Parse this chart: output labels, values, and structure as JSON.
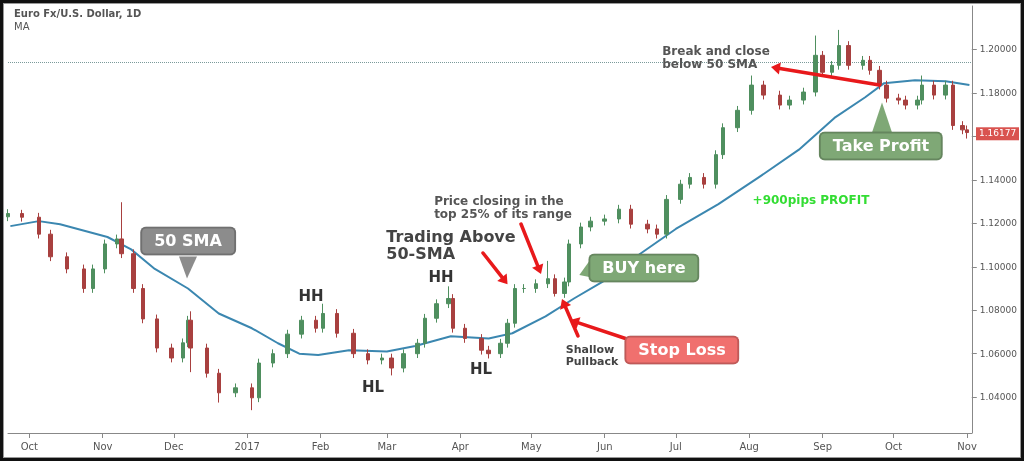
{
  "chart_data": {
    "type": "candlestick",
    "title": "Euro Fx/U.S. Dollar, 1D",
    "subtitle": "MA",
    "xlim": [
      "2016-09-22",
      "2017-11-03"
    ],
    "xticks": [
      {
        "value": "2016-10-01",
        "label": "Oct"
      },
      {
        "value": "2016-11-01",
        "label": "Nov"
      },
      {
        "value": "2016-12-01",
        "label": "Dec"
      },
      {
        "value": "2017-01-01",
        "label": "2017"
      },
      {
        "value": "2017-02-01",
        "label": "Feb"
      },
      {
        "value": "2017-03-01",
        "label": "Mar"
      },
      {
        "value": "2017-04-01",
        "label": "Apr"
      },
      {
        "value": "2017-05-01",
        "label": "May"
      },
      {
        "value": "2017-06-01",
        "label": "Jun"
      },
      {
        "value": "2017-07-01",
        "label": "Jul"
      },
      {
        "value": "2017-08-01",
        "label": "Aug"
      },
      {
        "value": "2017-09-01",
        "label": "Sep"
      },
      {
        "value": "2017-10-01",
        "label": "Oct"
      },
      {
        "value": "2017-11-01",
        "label": "Nov"
      }
    ],
    "ylim": [
      1.0235,
      1.22
    ],
    "yticks": [
      {
        "value": 1.04,
        "label": "1.04000"
      },
      {
        "value": 1.06,
        "label": "1.06000"
      },
      {
        "value": 1.08,
        "label": "1.08000"
      },
      {
        "value": 1.1,
        "label": "1.10000"
      },
      {
        "value": 1.12,
        "label": "1.12000"
      },
      {
        "value": 1.14,
        "label": "1.14000"
      },
      {
        "value": 1.16,
        "label": null
      },
      {
        "value": 1.18,
        "label": "1.18000"
      },
      {
        "value": 1.2,
        "label": "1.20000"
      }
    ],
    "grid": false,
    "series": [
      {
        "type": "candlestick",
        "x": [
          "2016-09-22",
          "2016-09-28",
          "2016-10-05",
          "2016-10-10",
          "2016-10-17",
          "2016-10-24",
          "2016-10-28",
          "2016-11-02",
          "2016-11-07",
          "2016-11-09",
          "2016-11-14",
          "2016-11-18",
          "2016-11-24",
          "2016-11-30",
          "2016-12-05",
          "2016-12-07",
          "2016-12-08",
          "2016-12-15",
          "2016-12-20",
          "2016-12-27",
          "2017-01-03",
          "2017-01-06",
          "2017-01-12",
          "2017-01-18",
          "2017-01-24",
          "2017-01-30",
          "2017-02-02",
          "2017-02-08",
          "2017-02-15",
          "2017-02-21",
          "2017-02-27",
          "2017-03-03",
          "2017-03-08",
          "2017-03-14",
          "2017-03-17",
          "2017-03-22",
          "2017-03-27",
          "2017-03-29",
          "2017-04-03",
          "2017-04-10",
          "2017-04-13",
          "2017-04-18",
          "2017-04-21",
          "2017-04-24",
          "2017-04-28",
          "2017-05-03",
          "2017-05-08",
          "2017-05-11",
          "2017-05-15",
          "2017-05-17",
          "2017-05-22",
          "2017-05-26",
          "2017-06-01",
          "2017-06-07",
          "2017-06-12",
          "2017-06-19",
          "2017-06-23",
          "2017-06-27",
          "2017-07-03",
          "2017-07-07",
          "2017-07-13",
          "2017-07-18",
          "2017-07-21",
          "2017-07-27",
          "2017-08-02",
          "2017-08-07",
          "2017-08-14",
          "2017-08-18",
          "2017-08-24",
          "2017-08-29",
          "2017-09-01",
          "2017-09-05",
          "2017-09-08",
          "2017-09-12",
          "2017-09-18",
          "2017-09-21",
          "2017-09-25",
          "2017-09-28",
          "2017-10-03",
          "2017-10-06",
          "2017-10-11",
          "2017-10-13",
          "2017-10-18",
          "2017-10-23",
          "2017-10-26",
          "2017-10-30",
          "2017-11-01"
        ],
        "ohlc": [
          [
            1.123,
            1.1265,
            1.121,
            1.1245
          ],
          [
            1.1245,
            1.1262,
            1.1208,
            1.1228
          ],
          [
            1.1228,
            1.1248,
            1.113,
            1.115
          ],
          [
            1.115,
            1.117,
            1.1026,
            1.1046
          ],
          [
            1.1046,
            1.1066,
            1.097,
            1.099
          ],
          [
            1.099,
            1.101,
            1.088,
            1.09
          ],
          [
            1.09,
            1.101,
            1.088,
            1.099
          ],
          [
            1.099,
            1.1125,
            1.097,
            1.1105
          ],
          [
            1.1105,
            1.1148,
            1.1085,
            1.1128
          ],
          [
            1.1128,
            1.1297,
            1.104,
            1.106
          ],
          [
            1.106,
            1.108,
            1.088,
            1.09
          ],
          [
            1.09,
            1.092,
            1.074,
            1.076
          ],
          [
            1.076,
            1.078,
            1.0606,
            1.0626
          ],
          [
            1.0626,
            1.0646,
            1.056,
            1.058
          ],
          [
            1.058,
            1.067,
            1.056,
            1.065
          ],
          [
            1.065,
            1.0774,
            1.063,
            1.0754
          ],
          [
            1.0754,
            1.0795,
            1.0515,
            1.0626
          ],
          [
            1.0626,
            1.0646,
            1.049,
            1.051
          ],
          [
            1.051,
            1.053,
            1.0375,
            1.042
          ],
          [
            1.042,
            1.0463,
            1.04,
            1.0443
          ],
          [
            1.0443,
            1.0463,
            1.034,
            1.0397
          ],
          [
            1.0397,
            1.0577,
            1.0377,
            1.0557
          ],
          [
            1.0557,
            1.062,
            1.0537,
            1.06
          ],
          [
            1.06,
            1.071,
            1.058,
            1.069
          ],
          [
            1.069,
            1.0774,
            1.067,
            1.0754
          ],
          [
            1.0754,
            1.0774,
            1.0697,
            1.0717
          ],
          [
            1.0717,
            1.083,
            1.0697,
            1.0785
          ],
          [
            1.0785,
            1.0805,
            1.0674,
            1.0694
          ],
          [
            1.0694,
            1.0714,
            1.058,
            1.06
          ],
          [
            1.06,
            1.062,
            1.0551,
            1.0571
          ],
          [
            1.0571,
            1.06,
            1.0551,
            1.058
          ],
          [
            1.058,
            1.06,
            1.05,
            1.0534
          ],
          [
            1.0534,
            1.062,
            1.0514,
            1.06
          ],
          [
            1.06,
            1.0668,
            1.058,
            1.0648
          ],
          [
            1.0648,
            1.0783,
            1.0628,
            1.0763
          ],
          [
            1.0763,
            1.085,
            1.0743,
            1.083
          ],
          [
            1.083,
            1.091,
            1.081,
            1.0854
          ],
          [
            1.0854,
            1.0874,
            1.0697,
            1.0717
          ],
          [
            1.0717,
            1.0737,
            1.065,
            1.067
          ],
          [
            1.067,
            1.069,
            1.0596,
            1.0616
          ],
          [
            1.0616,
            1.0636,
            1.0578,
            1.06
          ],
          [
            1.06,
            1.0668,
            1.058,
            1.0648
          ],
          [
            1.0648,
            1.076,
            1.0628,
            1.074
          ],
          [
            1.074,
            1.092,
            1.072,
            1.09
          ],
          [
            1.09,
            1.092,
            1.088,
            1.09
          ],
          [
            1.09,
            1.0942,
            1.088,
            1.0922
          ],
          [
            1.0922,
            1.1027,
            1.0902,
            1.0945
          ],
          [
            1.0945,
            1.0965,
            1.0863,
            1.0877
          ],
          [
            1.0877,
            1.095,
            1.0857,
            1.093
          ],
          [
            1.093,
            1.1125,
            1.091,
            1.1105
          ],
          [
            1.1105,
            1.1203,
            1.1085,
            1.1183
          ],
          [
            1.1183,
            1.123,
            1.1163,
            1.121
          ],
          [
            1.121,
            1.124,
            1.119,
            1.122
          ],
          [
            1.122,
            1.1285,
            1.12,
            1.1265
          ],
          [
            1.1265,
            1.1285,
            1.1176,
            1.1196
          ],
          [
            1.1196,
            1.1216,
            1.1154,
            1.1174
          ],
          [
            1.1174,
            1.1194,
            1.113,
            1.115
          ],
          [
            1.115,
            1.133,
            1.113,
            1.131
          ],
          [
            1.131,
            1.14,
            1.129,
            1.138
          ],
          [
            1.138,
            1.1431,
            1.136,
            1.1411
          ],
          [
            1.1411,
            1.1431,
            1.136,
            1.138
          ],
          [
            1.138,
            1.1536,
            1.136,
            1.1516
          ],
          [
            1.1516,
            1.166,
            1.1496,
            1.164
          ],
          [
            1.164,
            1.174,
            1.162,
            1.172
          ],
          [
            1.172,
            1.188,
            1.17,
            1.1836
          ],
          [
            1.1836,
            1.1856,
            1.177,
            1.179
          ],
          [
            1.179,
            1.181,
            1.1724,
            1.1744
          ],
          [
            1.1744,
            1.1787,
            1.1724,
            1.1767
          ],
          [
            1.1767,
            1.1824,
            1.1747,
            1.1804
          ],
          [
            1.1804,
            1.2064,
            1.1784,
            1.1973
          ],
          [
            1.1973,
            1.1993,
            1.1875,
            1.1895
          ],
          [
            1.1895,
            1.1947,
            1.1875,
            1.1927
          ],
          [
            1.1927,
            1.209,
            1.1907,
            1.2018
          ],
          [
            1.2018,
            1.2038,
            1.1907,
            1.1927
          ],
          [
            1.1927,
            1.197,
            1.1907,
            1.195
          ],
          [
            1.195,
            1.197,
            1.1884,
            1.1904
          ],
          [
            1.1904,
            1.1924,
            1.1816,
            1.1836
          ],
          [
            1.1836,
            1.1856,
            1.1756,
            1.1776
          ],
          [
            1.1776,
            1.1796,
            1.1747,
            1.1767
          ],
          [
            1.1767,
            1.1787,
            1.1724,
            1.1744
          ],
          [
            1.1744,
            1.1787,
            1.1724,
            1.1767
          ],
          [
            1.1767,
            1.188,
            1.1747,
            1.1836
          ],
          [
            1.1836,
            1.1856,
            1.177,
            1.179
          ],
          [
            1.179,
            1.1856,
            1.177,
            1.1836
          ],
          [
            1.1836,
            1.1856,
            1.163,
            1.165
          ],
          [
            1.165,
            1.167,
            1.161,
            1.163
          ],
          [
            1.163,
            1.165,
            1.159,
            1.16177
          ]
        ],
        "colors": [
          "#4f8f5f",
          "#a8403f",
          "#a8403f",
          "#a8403f",
          "#a8403f",
          "#a8403f",
          "#4f8f5f",
          "#4f8f5f",
          "#4f8f5f",
          "#a8403f",
          "#a8403f",
          "#a8403f",
          "#a8403f",
          "#a8403f",
          "#4f8f5f",
          "#4f8f5f",
          "#a8403f",
          "#a8403f",
          "#a8403f",
          "#4f8f5f",
          "#a8403f",
          "#4f8f5f",
          "#4f8f5f",
          "#4f8f5f",
          "#4f8f5f",
          "#a8403f",
          "#4f8f5f",
          "#a8403f",
          "#a8403f",
          "#a8403f",
          "#4f8f5f",
          "#a8403f",
          "#4f8f5f",
          "#4f8f5f",
          "#4f8f5f",
          "#4f8f5f",
          "#4f8f5f",
          "#a8403f",
          "#a8403f",
          "#a8403f",
          "#a8403f",
          "#4f8f5f",
          "#4f8f5f",
          "#4f8f5f",
          "#4f8f5f",
          "#4f8f5f",
          "#4f8f5f",
          "#a8403f",
          "#4f8f5f",
          "#4f8f5f",
          "#4f8f5f",
          "#4f8f5f",
          "#4f8f5f",
          "#4f8f5f",
          "#a8403f",
          "#a8403f",
          "#a8403f",
          "#4f8f5f",
          "#4f8f5f",
          "#4f8f5f",
          "#a8403f",
          "#4f8f5f",
          "#4f8f5f",
          "#4f8f5f",
          "#4f8f5f",
          "#a8403f",
          "#a8403f",
          "#4f8f5f",
          "#4f8f5f",
          "#4f8f5f",
          "#a8403f",
          "#4f8f5f",
          "#4f8f5f",
          "#a8403f",
          "#4f8f5f",
          "#a8403f",
          "#a8403f",
          "#a8403f",
          "#a8403f",
          "#a8403f",
          "#4f8f5f",
          "#4f8f5f",
          "#a8403f",
          "#4f8f5f",
          "#a8403f",
          "#a8403f",
          "#a8403f"
        ]
      },
      {
        "type": "line",
        "color": "#3b87b0",
        "x": [
          "2016-09-23",
          "2016-10-05",
          "2016-10-14",
          "2016-11-03",
          "2016-11-13",
          "2016-11-23",
          "2016-12-07",
          "2016-12-20",
          "2017-01-03",
          "2017-01-14",
          "2017-01-23",
          "2017-01-31",
          "2017-02-13",
          "2017-03-01",
          "2017-03-13",
          "2017-03-28",
          "2017-04-13",
          "2017-04-23",
          "2017-05-07",
          "2017-05-19",
          "2017-05-31",
          "2017-06-16",
          "2017-07-01",
          "2017-07-19",
          "2017-08-05",
          "2017-08-22",
          "2017-09-06",
          "2017-09-19",
          "2017-09-27",
          "2017-10-10",
          "2017-10-23",
          "2017-11-02"
        ],
        "values": [
          1.1187,
          1.121,
          1.1196,
          1.1137,
          1.108,
          1.099,
          1.09,
          1.0785,
          1.0717,
          1.0648,
          1.06,
          1.0594,
          1.0616,
          1.061,
          1.0635,
          1.068,
          1.067,
          1.0694,
          1.0772,
          1.0854,
          1.093,
          1.106,
          1.1174,
          1.1288,
          1.1411,
          1.1539,
          1.1685,
          1.178,
          1.1845,
          1.1858,
          1.1854,
          1.1836
        ]
      }
    ],
    "ref_lines": [
      {
        "axis": "y",
        "value": 1.194,
        "color": "#7a9a9a",
        "line_style": "dotted"
      }
    ],
    "annotations": [
      "50 SMA",
      "HH",
      "HL",
      "HH",
      "HL",
      {
        "text": "Trading Above\n50-SMA",
        "x": "2017-04-22",
        "y": 1.0905
      },
      "Price closing in the\ntop 25% of its range",
      "BUY here",
      "Shallow\nPullback",
      "Stop Loss",
      {
        "text": "Break and close\nbelow 50 SMA",
        "x": "2017-09-25",
        "y": 1.1836
      },
      "Take Profit",
      "+900pips PROFIT",
      "1.16177"
    ]
  }
}
